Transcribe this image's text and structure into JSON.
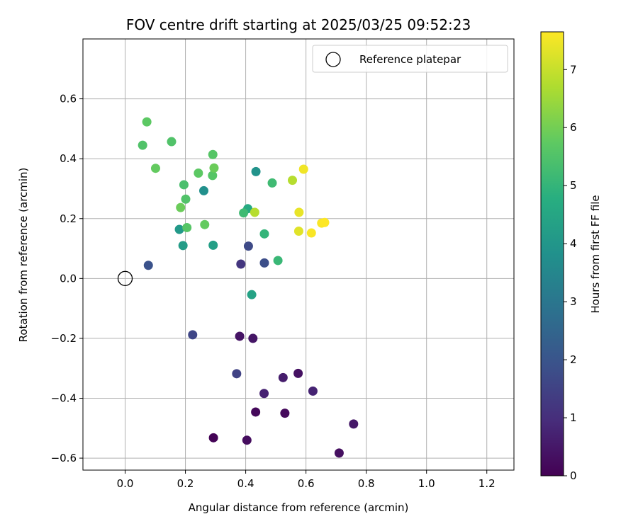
{
  "chart_data": {
    "type": "scatter",
    "title": "FOV centre drift starting at 2025/03/25 09:52:23",
    "xlabel": "Angular distance from reference (arcmin)",
    "ylabel": "Rotation from reference (arcmin)",
    "xlim": [
      -0.14,
      1.29
    ],
    "ylim": [
      -0.64,
      0.8
    ],
    "xticks": [
      0.0,
      0.2,
      0.4,
      0.6,
      0.8,
      1.0,
      1.2
    ],
    "xtick_labels": [
      "0.0",
      "0.2",
      "0.4",
      "0.6",
      "0.8",
      "1.0",
      "1.2"
    ],
    "yticks": [
      -0.6,
      -0.4,
      -0.2,
      0.0,
      0.2,
      0.4,
      0.6
    ],
    "ytick_labels": [
      "−0.6",
      "−0.4",
      "−0.2",
      "0.0",
      "0.2",
      "0.4",
      "0.6"
    ],
    "grid": true,
    "legend": {
      "position": "top-right",
      "label": "Reference platepar"
    },
    "reference_point": {
      "x": 0.0,
      "y": 0.0
    },
    "colorbar": {
      "label": "Hours from first FF file",
      "colormap": "viridis",
      "range": [
        0,
        7.65
      ],
      "ticks": [
        0,
        1,
        2,
        3,
        4,
        5,
        6,
        7
      ],
      "tick_labels": [
        "0",
        "1",
        "2",
        "3",
        "4",
        "5",
        "6",
        "7"
      ]
    },
    "points": [
      {
        "x": 0.293,
        "y": -0.532,
        "hours": 0.05
      },
      {
        "x": 0.404,
        "y": -0.54,
        "hours": 0.25
      },
      {
        "x": 0.433,
        "y": -0.446,
        "hours": 0.15
      },
      {
        "x": 0.53,
        "y": -0.45,
        "hours": 0.2
      },
      {
        "x": 0.71,
        "y": -0.583,
        "hours": 0.3
      },
      {
        "x": 0.758,
        "y": -0.486,
        "hours": 0.5
      },
      {
        "x": 0.461,
        "y": -0.384,
        "hours": 0.7
      },
      {
        "x": 0.524,
        "y": -0.331,
        "hours": 0.6
      },
      {
        "x": 0.574,
        "y": -0.317,
        "hours": 0.35
      },
      {
        "x": 0.623,
        "y": -0.376,
        "hours": 0.75
      },
      {
        "x": 0.38,
        "y": -0.193,
        "hours": 0.4
      },
      {
        "x": 0.424,
        "y": -0.2,
        "hours": 0.45
      },
      {
        "x": 0.37,
        "y": -0.318,
        "hours": 1.5
      },
      {
        "x": 0.224,
        "y": -0.188,
        "hours": 1.6
      },
      {
        "x": 0.077,
        "y": 0.044,
        "hours": 1.9
      },
      {
        "x": 0.384,
        "y": 0.048,
        "hours": 1.2
      },
      {
        "x": 0.462,
        "y": 0.052,
        "hours": 1.8
      },
      {
        "x": 0.409,
        "y": 0.108,
        "hours": 1.7
      },
      {
        "x": 0.42,
        "y": -0.054,
        "hours": 4.4
      },
      {
        "x": 0.192,
        "y": 0.11,
        "hours": 4.2
      },
      {
        "x": 0.292,
        "y": 0.111,
        "hours": 4.3
      },
      {
        "x": 0.18,
        "y": 0.164,
        "hours": 4.1
      },
      {
        "x": 0.261,
        "y": 0.293,
        "hours": 3.8
      },
      {
        "x": 0.434,
        "y": 0.357,
        "hours": 3.9
      },
      {
        "x": 0.407,
        "y": 0.233,
        "hours": 4.6
      },
      {
        "x": 0.393,
        "y": 0.219,
        "hours": 5.2
      },
      {
        "x": 0.462,
        "y": 0.149,
        "hours": 5.0
      },
      {
        "x": 0.507,
        "y": 0.06,
        "hours": 5.1
      },
      {
        "x": 0.488,
        "y": 0.319,
        "hours": 5.2
      },
      {
        "x": 0.195,
        "y": 0.313,
        "hours": 5.4
      },
      {
        "x": 0.201,
        "y": 0.265,
        "hours": 5.5
      },
      {
        "x": 0.205,
        "y": 0.17,
        "hours": 5.6
      },
      {
        "x": 0.184,
        "y": 0.237,
        "hours": 5.9
      },
      {
        "x": 0.264,
        "y": 0.18,
        "hours": 5.8
      },
      {
        "x": 0.243,
        "y": 0.352,
        "hours": 5.7
      },
      {
        "x": 0.29,
        "y": 0.344,
        "hours": 5.6
      },
      {
        "x": 0.295,
        "y": 0.369,
        "hours": 5.9
      },
      {
        "x": 0.291,
        "y": 0.414,
        "hours": 5.6
      },
      {
        "x": 0.101,
        "y": 0.368,
        "hours": 5.8
      },
      {
        "x": 0.058,
        "y": 0.445,
        "hours": 5.5
      },
      {
        "x": 0.154,
        "y": 0.457,
        "hours": 5.5
      },
      {
        "x": 0.072,
        "y": 0.523,
        "hours": 5.7
      },
      {
        "x": 0.43,
        "y": 0.221,
        "hours": 6.8
      },
      {
        "x": 0.555,
        "y": 0.328,
        "hours": 6.8
      },
      {
        "x": 0.592,
        "y": 0.365,
        "hours": 7.5
      },
      {
        "x": 0.577,
        "y": 0.221,
        "hours": 7.4
      },
      {
        "x": 0.576,
        "y": 0.158,
        "hours": 7.3
      },
      {
        "x": 0.618,
        "y": 0.152,
        "hours": 7.6
      },
      {
        "x": 0.652,
        "y": 0.185,
        "hours": 7.6
      },
      {
        "x": 0.662,
        "y": 0.187,
        "hours": 7.65
      }
    ]
  }
}
